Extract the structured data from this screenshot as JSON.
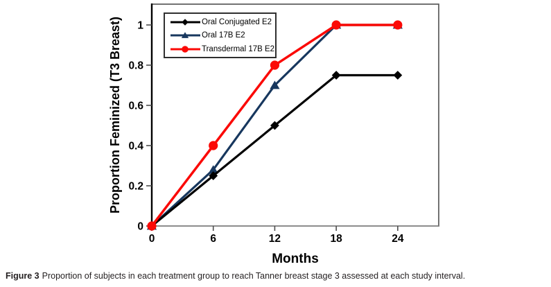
{
  "figure": {
    "caption_label": "Figure 3",
    "caption_text": "Proportion of subjects in each treatment group to reach Tanner breast stage 3 assessed at each study interval."
  },
  "chart_data": {
    "type": "line",
    "title": "",
    "xlabel": "Months",
    "ylabel": "Proportion Feminized (T3 Breast)",
    "x": [
      0,
      6,
      12,
      18,
      24
    ],
    "x_tick_labels": [
      "0",
      "6",
      "12",
      "18",
      "24"
    ],
    "y_ticks": [
      0,
      0.2,
      0.4,
      0.6,
      0.8,
      1
    ],
    "y_tick_labels": [
      "0",
      "0.2",
      "0.4",
      "0.6",
      "0.8",
      "1"
    ],
    "xlim": [
      0,
      28
    ],
    "ylim": [
      0,
      1.1
    ],
    "grid": false,
    "legend_position": "top-left-inside",
    "series": [
      {
        "name": "Oral Conjugated E2",
        "color": "#000000",
        "marker": "diamond",
        "values": [
          0,
          0.25,
          0.5,
          0.75,
          0.75
        ]
      },
      {
        "name": "Oral 17B E2",
        "color": "#17375E",
        "marker": "triangle",
        "values": [
          0,
          0.28,
          0.7,
          1.0,
          1.0
        ]
      },
      {
        "name": "Transdermal 17B E2",
        "color": "#FB0906",
        "marker": "circle",
        "values": [
          0,
          0.4,
          0.8,
          1.0,
          1.0
        ]
      }
    ],
    "draw_order_note": "red drawn on top of blue at overlapping 18-24 month plateau"
  }
}
